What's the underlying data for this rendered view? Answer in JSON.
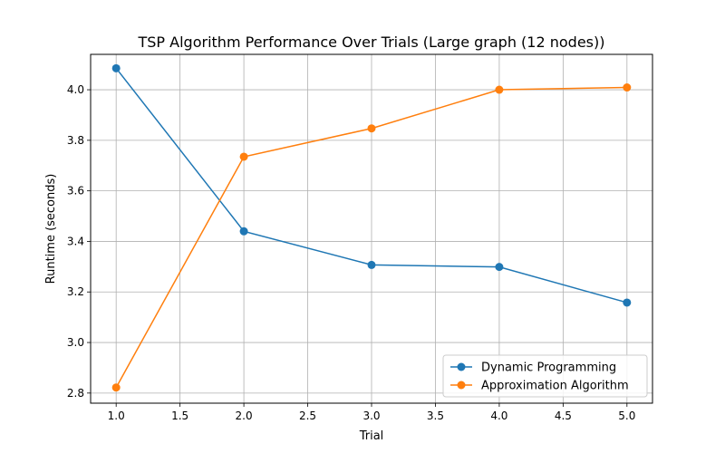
{
  "chart_data": {
    "type": "line",
    "title": "TSP Algorithm Performance Over Trials (Large graph (12 nodes))",
    "xlabel": "Trial",
    "ylabel": "Runtime (seconds)",
    "xlim": [
      0.8,
      5.2
    ],
    "ylim": [
      2.76,
      4.14
    ],
    "xticks": [
      "1.0",
      "1.5",
      "2.0",
      "2.5",
      "3.0",
      "3.5",
      "4.0",
      "4.5",
      "5.0"
    ],
    "yticks": [
      "2.8",
      "3.0",
      "3.2",
      "3.4",
      "3.6",
      "3.8",
      "4.0"
    ],
    "grid": true,
    "legend_position": "lower-right",
    "x": [
      1,
      2,
      3,
      4,
      5
    ],
    "series": [
      {
        "name": "Dynamic Programming",
        "color": "#1f77b4",
        "values": [
          4.085,
          3.44,
          3.307,
          3.299,
          3.158
        ]
      },
      {
        "name": "Approximation Algorithm",
        "color": "#ff7f0e",
        "values": [
          2.822,
          3.735,
          3.847,
          4.0,
          4.009
        ]
      }
    ]
  }
}
